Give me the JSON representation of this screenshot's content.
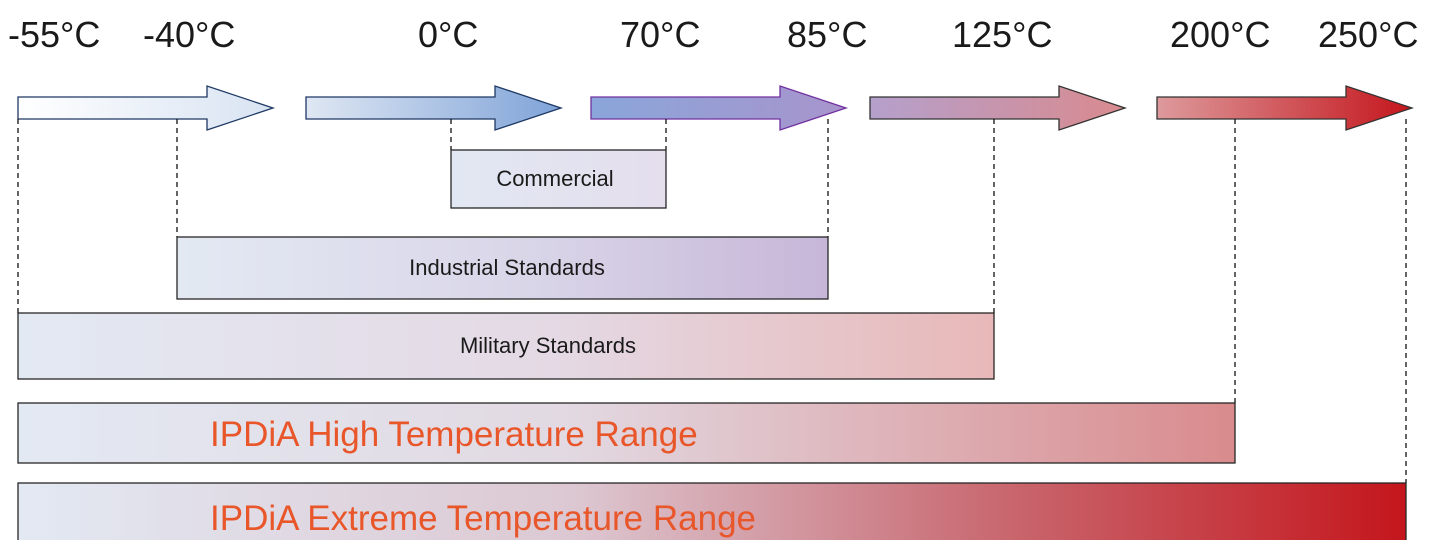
{
  "temperature_ticks": [
    {
      "label": "-55°C",
      "value": -55
    },
    {
      "label": "-40°C",
      "value": -40
    },
    {
      "label": "0°C",
      "value": 0
    },
    {
      "label": "70°C",
      "value": 70
    },
    {
      "label": "85°C",
      "value": 85
    },
    {
      "label": "125°C",
      "value": 125
    },
    {
      "label": "200°C",
      "value": 200
    },
    {
      "label": "250°C",
      "value": 250
    }
  ],
  "ranges": [
    {
      "name": "commercial",
      "label": "Commercial",
      "from": "0°C",
      "to": "70°C"
    },
    {
      "name": "industrial",
      "label": "Industrial Standards",
      "from": "-40°C",
      "to": "85°C"
    },
    {
      "name": "military",
      "label": "Military Standards",
      "from": "-55°C",
      "to": "125°C"
    },
    {
      "name": "high",
      "label": "IPDiA High Temperature Range",
      "from": "-55°C",
      "to": "200°C"
    },
    {
      "name": "extreme",
      "label": "IPDiA Extreme Temperature Range",
      "from": "-55°C",
      "to": "250°C"
    }
  ],
  "colors": {
    "cool": "#e3e9f3",
    "blue": "#7d9fd4",
    "violet": "#a795cc",
    "rose": "#d98f94",
    "red": "#c4161c",
    "accent_text": "#e8562a"
  }
}
